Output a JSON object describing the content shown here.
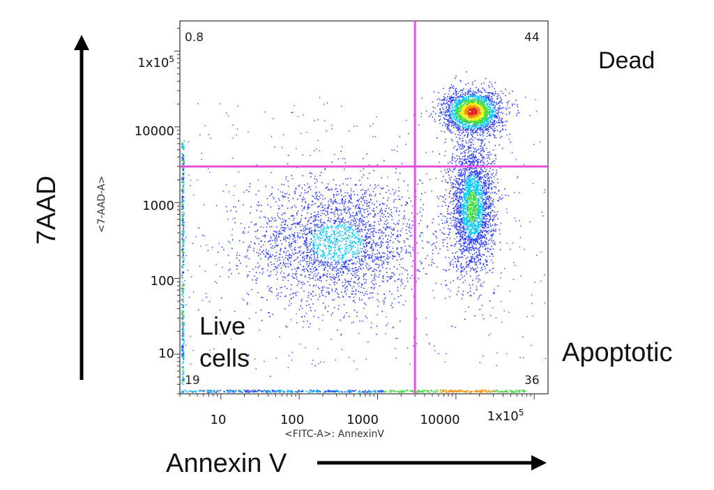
{
  "chart_data": {
    "type": "scatter",
    "x_axis": {
      "label": "<FITC-A>: AnnexinV",
      "scale": "log",
      "range": [
        3,
        150000
      ],
      "ticks": [
        {
          "value": 10,
          "label": "10"
        },
        {
          "value": 100,
          "label": "100"
        },
        {
          "value": 1000,
          "label": "1000"
        },
        {
          "value": 10000,
          "label": "10000"
        },
        {
          "value": 100000,
          "label": "1x10^5"
        }
      ]
    },
    "y_axis": {
      "label": "<7-AAD-A>",
      "scale": "log",
      "range": [
        3,
        250000
      ],
      "ticks": [
        {
          "value": 10,
          "label": "10"
        },
        {
          "value": 100,
          "label": "100"
        },
        {
          "value": 1000,
          "label": "1000"
        },
        {
          "value": 10000,
          "label": "10000"
        },
        {
          "value": 100000,
          "label": "1x10^5"
        }
      ]
    },
    "quadrant_gate": {
      "x": 3000,
      "y": 3000,
      "color": "#e64fe0"
    },
    "quadrant_percentages": {
      "upper_left": "0.8",
      "upper_right": "44",
      "lower_left": "19",
      "lower_right": "36"
    },
    "populations": [
      {
        "name": "Dead",
        "center": [
          16000,
          16000
        ]
      },
      {
        "name": "Apoptotic",
        "center": [
          16000,
          900
        ]
      },
      {
        "name": "Live cells",
        "center": [
          300,
          300
        ]
      }
    ],
    "density_colors": [
      "#2b3cff",
      "#00c8ff",
      "#3cdc3c",
      "#f0f000",
      "#ff8c00",
      "#e81e1e"
    ]
  },
  "annotations": {
    "y_arrow_label": "7AAD",
    "x_arrow_label": "Annexin V",
    "dead_label": "Dead",
    "apoptotic_label": "Apoptotic",
    "live_label_line1": "Live",
    "live_label_line2": "cells"
  }
}
